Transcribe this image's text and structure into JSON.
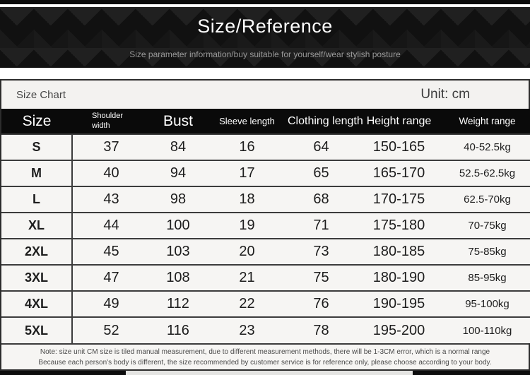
{
  "banner": {
    "title": "Size/Reference",
    "subtitle": "Size parameter information/buy suitable for yourself/wear stylish posture"
  },
  "panel": {
    "title": "Size Chart",
    "unit_label": "Unit: cm"
  },
  "chart_data": {
    "type": "table",
    "title": "Size Chart",
    "unit": "cm",
    "columns": [
      "Size",
      "Shoulder width",
      "Bust",
      "Sleeve length",
      "Clothing length",
      "Height range",
      "Weight range"
    ],
    "rows": [
      [
        "S",
        "37",
        "84",
        "16",
        "64",
        "150-165",
        "40-52.5kg"
      ],
      [
        "M",
        "40",
        "94",
        "17",
        "65",
        "165-170",
        "52.5-62.5kg"
      ],
      [
        "L",
        "43",
        "98",
        "18",
        "68",
        "170-175",
        "62.5-70kg"
      ],
      [
        "XL",
        "44",
        "100",
        "19",
        "71",
        "175-180",
        "70-75kg"
      ],
      [
        "2XL",
        "45",
        "103",
        "20",
        "73",
        "180-185",
        "75-85kg"
      ],
      [
        "3XL",
        "47",
        "108",
        "21",
        "75",
        "180-190",
        "85-95kg"
      ],
      [
        "4XL",
        "49",
        "112",
        "22",
        "76",
        "190-195",
        "95-100kg"
      ],
      [
        "5XL",
        "52",
        "116",
        "23",
        "78",
        "195-200",
        "100-110kg"
      ]
    ],
    "note_line1": "Note: size unit CM size is tiled manual measurement, due to different measurement methods, there will be 1-3CM error, which is a normal range",
    "note_line2": "Because each person's body is different, the size recommended by customer service is for reference only, please choose according to your body."
  },
  "colors": {
    "banner_bg": "#111111",
    "header_row_bg": "#0a0a0a",
    "row_bg": "#f6f5f3",
    "border": "#3c3c3c",
    "subtitle_text": "#9a9a9a"
  }
}
